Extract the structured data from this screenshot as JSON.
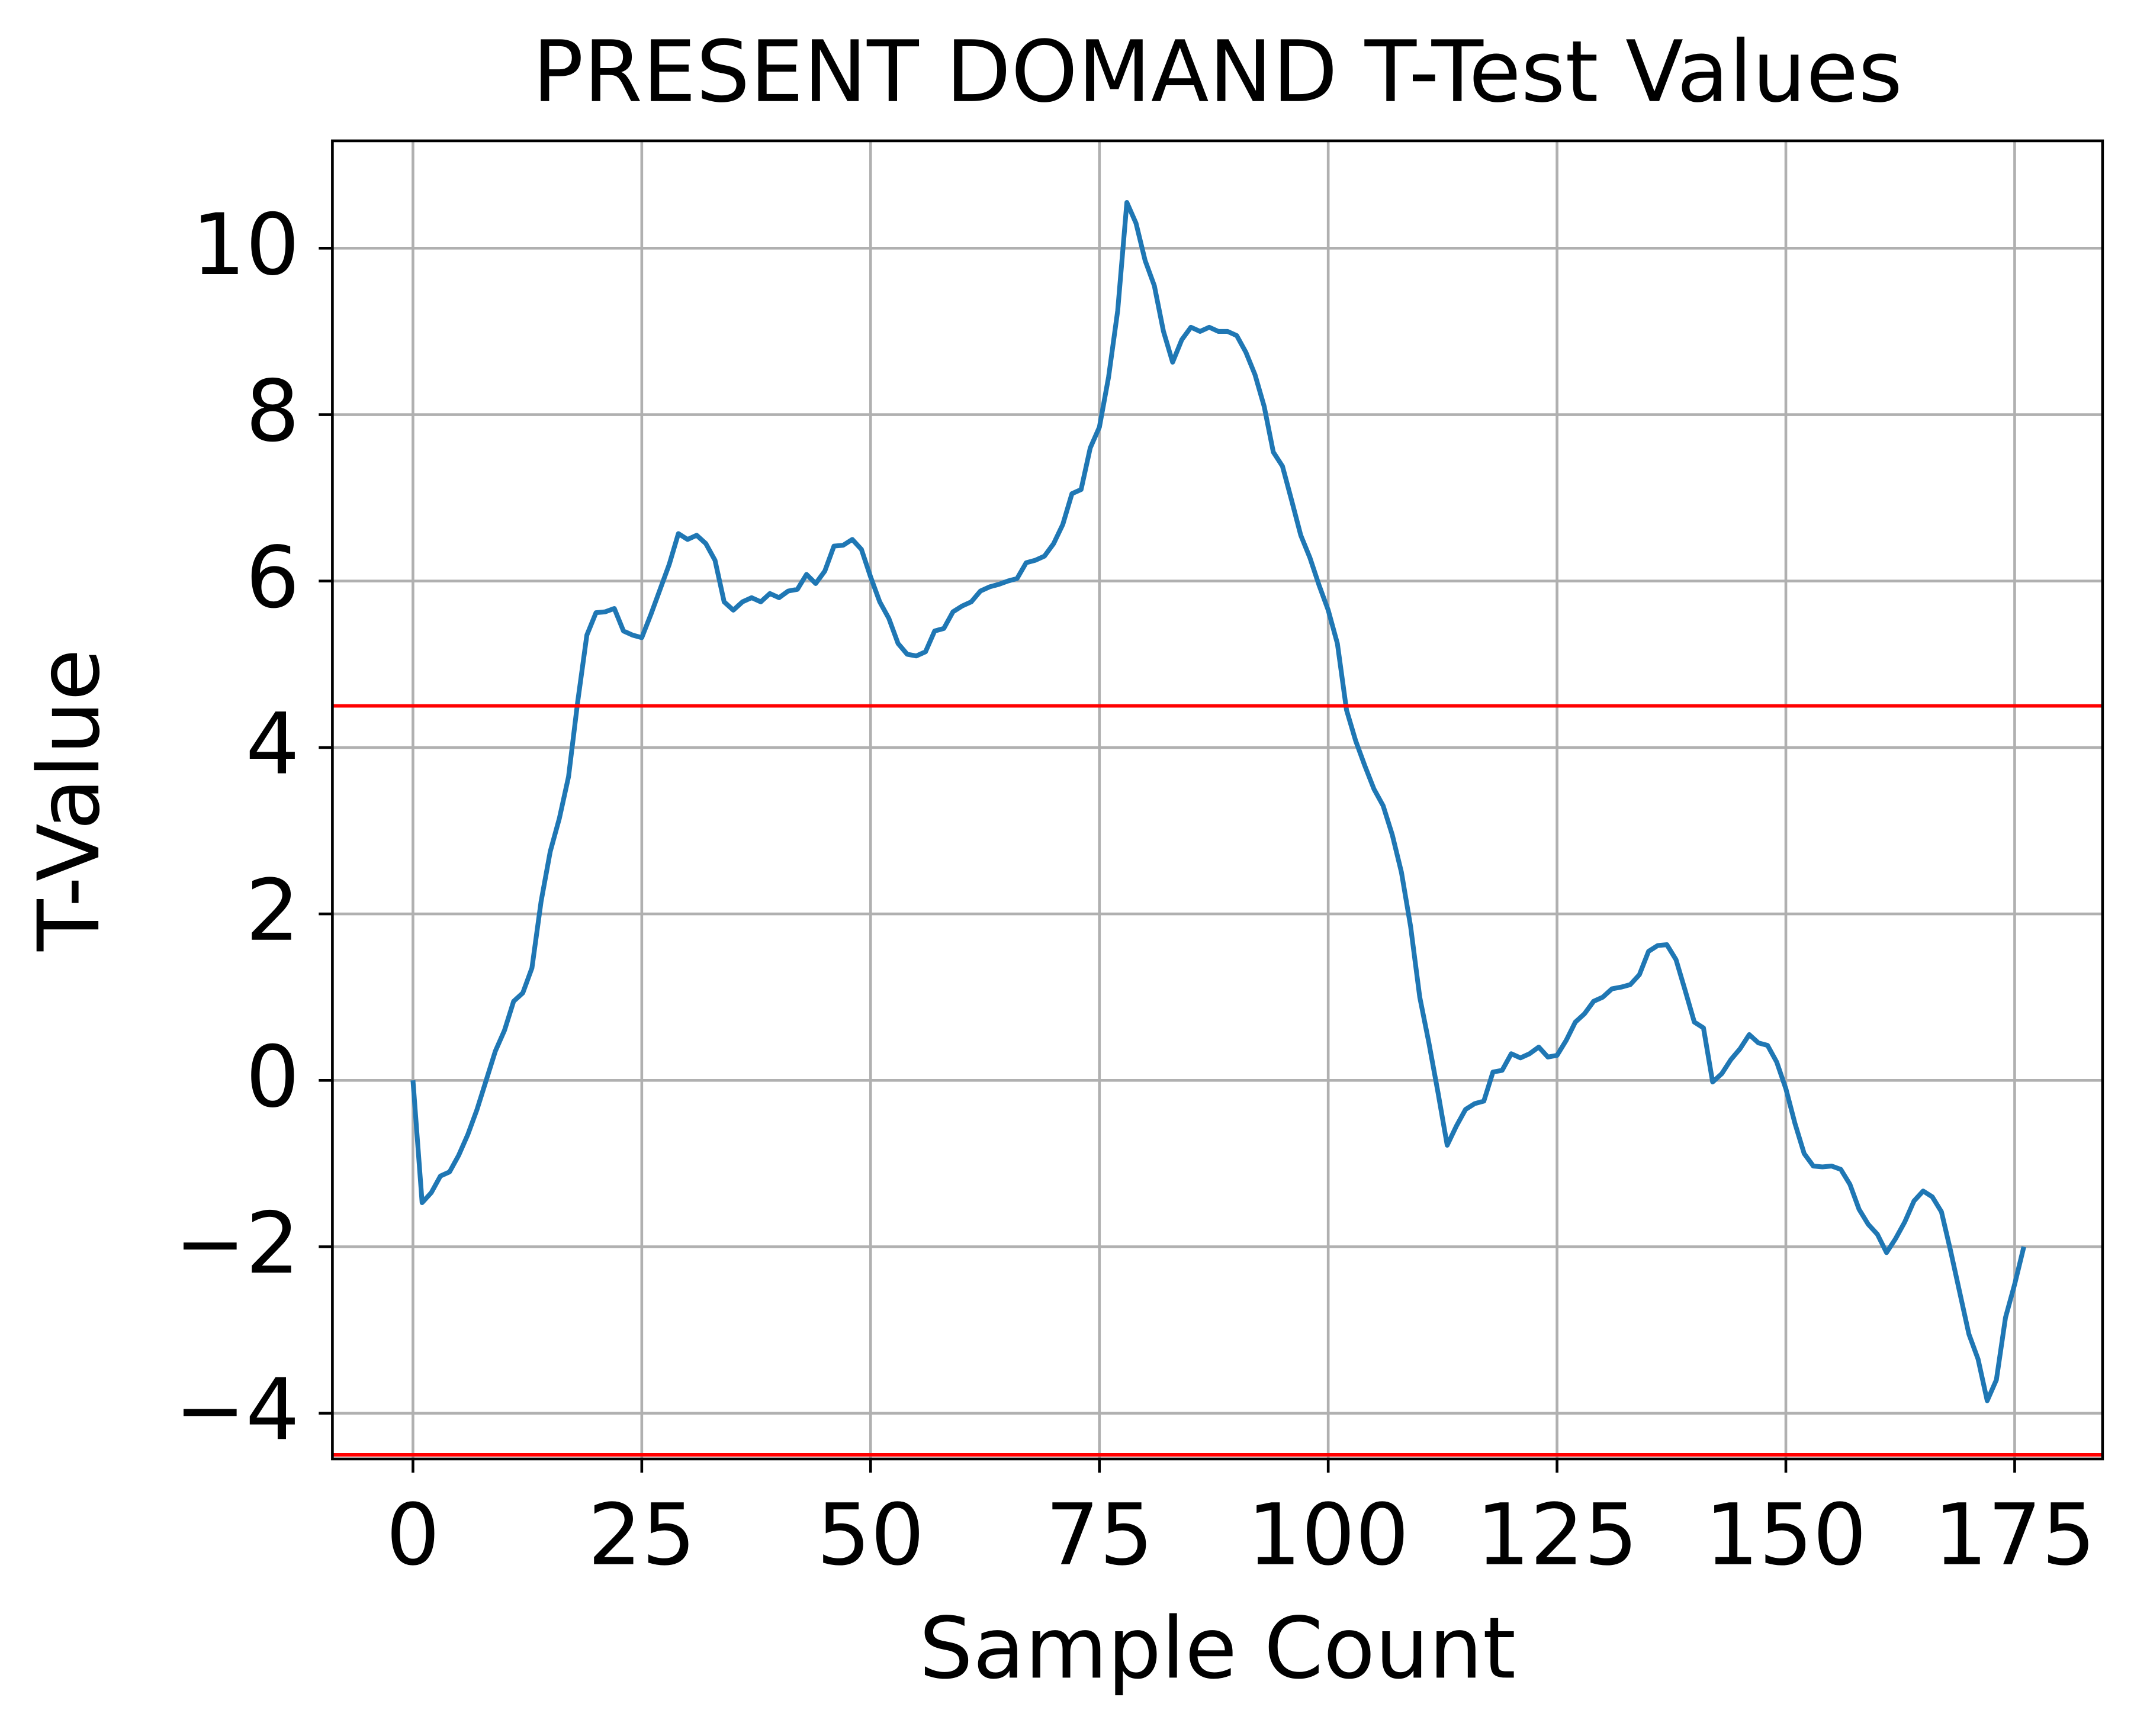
{
  "chart_data": {
    "type": "line",
    "title": "PRESENT DOMAND T-Test Values",
    "xlabel": "Sample Count",
    "ylabel": "T-Value",
    "x": [
      0,
      1,
      2,
      3,
      4,
      5,
      6,
      7,
      8,
      9,
      10,
      11,
      12,
      13,
      14,
      15,
      16,
      17,
      18,
      19,
      20,
      21,
      22,
      23,
      24,
      25,
      26,
      27,
      28,
      29,
      30,
      31,
      32,
      33,
      34,
      35,
      36,
      37,
      38,
      39,
      40,
      41,
      42,
      43,
      44,
      45,
      46,
      47,
      48,
      49,
      50,
      51,
      52,
      53,
      54,
      55,
      56,
      57,
      58,
      59,
      60,
      61,
      62,
      63,
      64,
      65,
      66,
      67,
      68,
      69,
      70,
      71,
      72,
      73,
      74,
      75,
      76,
      77,
      78,
      79,
      80,
      81,
      82,
      83,
      84,
      85,
      86,
      87,
      88,
      89,
      90,
      91,
      92,
      93,
      94,
      95,
      96,
      97,
      98,
      99,
      100,
      101,
      102,
      103,
      104,
      105,
      106,
      107,
      108,
      109,
      110,
      111,
      112,
      113,
      114,
      115,
      116,
      117,
      118,
      119,
      120,
      121,
      122,
      123,
      124,
      125,
      126,
      127,
      128,
      129,
      130,
      131,
      132,
      133,
      134,
      135,
      136,
      137,
      138,
      139,
      140,
      141,
      142,
      143,
      144,
      145,
      146,
      147,
      148,
      149,
      150,
      151,
      152,
      153,
      154,
      155,
      156,
      157,
      158,
      159,
      160,
      161,
      162,
      163,
      164,
      165,
      166,
      167,
      168,
      169,
      170,
      171,
      172,
      173,
      174,
      175,
      176
    ],
    "series": [
      {
        "color": "#1f77b4",
        "values": [
          0,
          -1.47,
          -1.35,
          -1.15,
          -1.1,
          -0.9,
          -0.65,
          -0.35,
          0.0,
          0.35,
          0.6,
          0.95,
          1.05,
          1.35,
          2.15,
          2.75,
          3.15,
          3.65,
          4.55,
          5.35,
          5.62,
          5.63,
          5.67,
          5.4,
          5.35,
          5.32,
          5.6,
          5.9,
          6.2,
          6.57,
          6.5,
          6.55,
          6.45,
          6.25,
          5.75,
          5.65,
          5.75,
          5.8,
          5.75,
          5.85,
          5.8,
          5.88,
          5.9,
          6.08,
          5.97,
          6.12,
          6.42,
          6.43,
          6.5,
          6.38,
          6.05,
          5.75,
          5.55,
          5.25,
          5.12,
          5.1,
          5.15,
          5.4,
          5.43,
          5.63,
          5.7,
          5.75,
          5.88,
          5.93,
          5.96,
          6.0,
          6.03,
          6.22,
          6.25,
          6.3,
          6.45,
          6.68,
          7.05,
          7.1,
          7.6,
          7.85,
          8.45,
          9.25,
          10.55,
          10.3,
          9.85,
          9.55,
          9.0,
          8.63,
          8.9,
          9.05,
          9.0,
          9.05,
          9.0,
          9.0,
          8.95,
          8.75,
          8.48,
          8.1,
          7.55,
          7.38,
          6.97,
          6.55,
          6.28,
          5.95,
          5.65,
          5.25,
          4.45,
          4.08,
          3.78,
          3.5,
          3.3,
          2.95,
          2.5,
          1.85,
          1.0,
          0.45,
          -0.15,
          -0.78,
          -0.55,
          -0.35,
          -0.28,
          -0.25,
          0.1,
          0.12,
          0.32,
          0.27,
          0.32,
          0.4,
          0.28,
          0.3,
          0.48,
          0.7,
          0.8,
          0.95,
          1.0,
          1.1,
          1.12,
          1.15,
          1.27,
          1.55,
          1.62,
          1.63,
          1.45,
          1.08,
          0.7,
          0.63,
          -0.02,
          0.08,
          0.25,
          0.38,
          0.55,
          0.45,
          0.42,
          0.22,
          -0.1,
          -0.52,
          -0.88,
          -1.03,
          -1.04,
          -1.03,
          -1.07,
          -1.25,
          -1.55,
          -1.73,
          -1.85,
          -2.07,
          -1.9,
          -1.7,
          -1.45,
          -1.33,
          -1.4,
          -1.58,
          -2.05,
          -2.55,
          -3.05,
          -3.35,
          -3.85,
          -3.6,
          -2.85,
          -2.45,
          -2.0
        ]
      }
    ],
    "hlines": [
      {
        "value": 4.5,
        "color": "#ff0000"
      },
      {
        "value": -4.5,
        "color": "#ff0000"
      }
    ],
    "xlim": [
      -8.8,
      184.6
    ],
    "ylim": [
      -4.55,
      11.29
    ],
    "xticks": [
      0,
      25,
      50,
      75,
      100,
      125,
      150,
      175
    ],
    "yticks": [
      {
        "value": -4,
        "label": "−4"
      },
      {
        "value": -2,
        "label": "−2"
      },
      0,
      2,
      4,
      6,
      8,
      10
    ],
    "grid": true
  }
}
